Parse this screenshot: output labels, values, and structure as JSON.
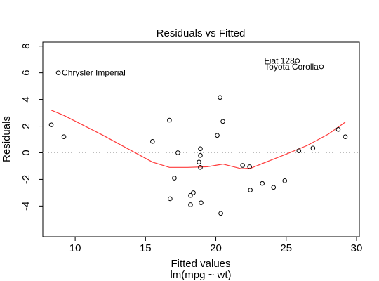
{
  "chart_data": {
    "type": "scatter",
    "title": "Residuals vs Fitted",
    "xlabel": "Fitted values",
    "xlabel2": "lm(mpg ~ wt)",
    "ylabel": "Residuals",
    "xlim": [
      7.7,
      30.2
    ],
    "ylim": [
      -6.3,
      8.3
    ],
    "x_ticks": [
      10,
      15,
      20,
      25,
      30
    ],
    "y_ticks": [
      -4,
      -2,
      0,
      2,
      4,
      6,
      8
    ],
    "series": [
      {
        "points": [
          {
            "x": 8.3,
            "y": 2.1
          },
          {
            "x": 9.2,
            "y": 1.2
          },
          {
            "x": 8.8,
            "y": 6.0
          },
          {
            "x": 15.5,
            "y": 0.85
          },
          {
            "x": 16.7,
            "y": 2.45
          },
          {
            "x": 16.75,
            "y": -3.45
          },
          {
            "x": 17.05,
            "y": -1.9
          },
          {
            "x": 17.3,
            "y": 0.0
          },
          {
            "x": 18.2,
            "y": -3.2
          },
          {
            "x": 18.2,
            "y": -3.9
          },
          {
            "x": 18.4,
            "y": -3.0
          },
          {
            "x": 18.8,
            "y": -0.7
          },
          {
            "x": 18.9,
            "y": -0.2
          },
          {
            "x": 18.9,
            "y": 0.3
          },
          {
            "x": 18.9,
            "y": -1.1
          },
          {
            "x": 18.95,
            "y": -3.75
          },
          {
            "x": 20.1,
            "y": 1.3
          },
          {
            "x": 20.3,
            "y": 4.15
          },
          {
            "x": 20.35,
            "y": -4.55
          },
          {
            "x": 20.5,
            "y": 2.35
          },
          {
            "x": 21.9,
            "y": -0.95
          },
          {
            "x": 22.4,
            "y": -1.05
          },
          {
            "x": 22.45,
            "y": -2.8
          },
          {
            "x": 23.3,
            "y": -2.3
          },
          {
            "x": 24.1,
            "y": -2.6
          },
          {
            "x": 24.9,
            "y": -2.1
          },
          {
            "x": 25.8,
            "y": 6.9
          },
          {
            "x": 25.9,
            "y": 0.15
          },
          {
            "x": 26.9,
            "y": 0.35
          },
          {
            "x": 27.5,
            "y": 6.45
          },
          {
            "x": 28.7,
            "y": 1.75
          },
          {
            "x": 29.2,
            "y": 1.2
          }
        ]
      }
    ],
    "smooth_line": [
      {
        "x": 8.3,
        "y": 3.2
      },
      {
        "x": 9.2,
        "y": 2.8
      },
      {
        "x": 12.0,
        "y": 1.3
      },
      {
        "x": 15.5,
        "y": -0.7
      },
      {
        "x": 16.7,
        "y": -1.1
      },
      {
        "x": 18.0,
        "y": -1.1
      },
      {
        "x": 19.4,
        "y": -1.05
      },
      {
        "x": 20.5,
        "y": -0.85
      },
      {
        "x": 21.8,
        "y": -1.2
      },
      {
        "x": 22.5,
        "y": -1.15
      },
      {
        "x": 23.8,
        "y": -0.6
      },
      {
        "x": 25.0,
        "y": -0.1
      },
      {
        "x": 26.5,
        "y": 0.55
      },
      {
        "x": 28.0,
        "y": 1.4
      },
      {
        "x": 29.2,
        "y": 2.3
      }
    ],
    "annotations": [
      {
        "label": "Chrysler Imperial",
        "x": 8.8,
        "y": 6.0,
        "anchor": "start",
        "dx": 0.25,
        "dy": 0.0
      },
      {
        "label": "Fiat 128",
        "x": 25.8,
        "y": 6.9,
        "anchor": "end",
        "dx": -0.2,
        "dy": 0.0
      },
      {
        "label": "Toyota Corolla",
        "x": 27.5,
        "y": 6.45,
        "anchor": "end",
        "dx": -0.2,
        "dy": 0.0
      }
    ],
    "zero_line": true,
    "grid": false
  }
}
